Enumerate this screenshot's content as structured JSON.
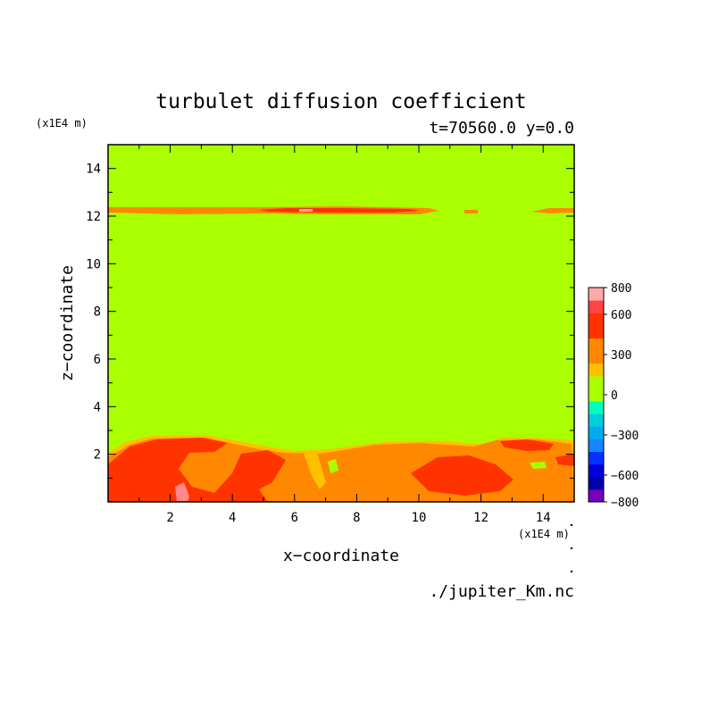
{
  "chart_data": {
    "type": "heatmap",
    "title": "turbulet diffusion coefficient",
    "subtitle": "t=70560.0 y=0.0",
    "xlabel": "x−coordinate",
    "ylabel": "z−coordinate",
    "x_unit": "(x1E4 m)",
    "y_unit": "(x1E4 m)",
    "source": "./jupiter_Km.nc",
    "xlim": [
      0,
      15
    ],
    "ylim": [
      0,
      15
    ],
    "xticks": [
      "2",
      "4",
      "6",
      "8",
      "10",
      "12",
      "14"
    ],
    "yticks": [
      "2",
      "4",
      "6",
      "8",
      "10",
      "12",
      "14"
    ],
    "colorbar": {
      "levels": [
        -800,
        -700,
        -600,
        -500,
        -400,
        -300,
        -200,
        -100,
        0,
        100,
        200,
        300,
        400,
        500,
        600,
        700,
        800
      ],
      "colors": [
        "#7700bb",
        "#0000aa",
        "#0000dd",
        "#0033ff",
        "#1188ff",
        "#00aaee",
        "#00ccdd",
        "#00ffbb",
        "#aaff00",
        "#aaff00",
        "#ffc000",
        "#ff8800",
        "#ff8800",
        "#ff3300",
        "#ff3300",
        "#ff4444",
        "#ffaaaa"
      ],
      "tick_labels": [
        "800",
        "600",
        "300",
        "0",
        "−300",
        "−600",
        "−800"
      ],
      "tick_values": [
        800,
        600,
        300,
        0,
        -300,
        -600,
        -800
      ]
    },
    "background_level": 0,
    "regions": [
      {
        "name": "upper-band",
        "level_range": [
          300,
          700
        ],
        "z_range": [
          12.0,
          12.3
        ],
        "x_range": [
          0,
          15
        ]
      },
      {
        "name": "lower-layer",
        "level_range": [
          100,
          800
        ],
        "z_range": [
          0,
          2.8
        ],
        "x_range": [
          0,
          15
        ]
      }
    ],
    "colors": {
      "lime": "#aaff00",
      "orange": "#ff8800",
      "red": "#ff3300",
      "yellow": "#ffc000",
      "pink": "#ff8888"
    }
  }
}
